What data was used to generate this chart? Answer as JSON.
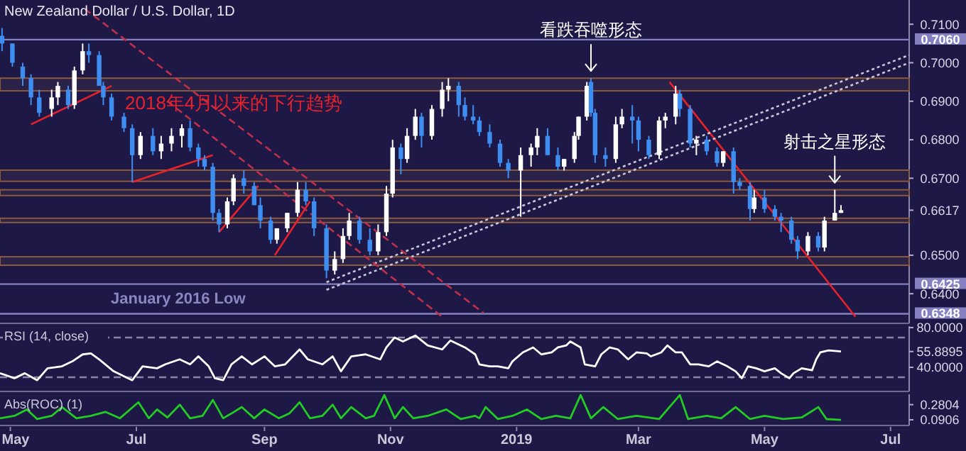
{
  "chart_data": [
    {
      "type": "candlestick",
      "title": "New Zealand Dollar / U.S. Dollar, 1D",
      "tick_labels": "y",
      "xlim": [
        "2018-04-26",
        "2019-07-10"
      ],
      "ylim": [
        0.6323,
        0.7163
      ],
      "yticks": [
        {
          "value": 0.71,
          "label": "0.7100"
        },
        {
          "value": 0.7,
          "label": "0.7000"
        },
        {
          "value": 0.69,
          "label": "0.6900"
        },
        {
          "value": 0.68,
          "label": "0.6800"
        },
        {
          "value": 0.67,
          "label": "0.6700"
        },
        {
          "value": 0.6617,
          "label": "0.6617"
        },
        {
          "value": 0.65,
          "label": "0.6500"
        },
        {
          "value": 0.64,
          "label": "0.6400"
        }
      ],
      "colors": [
        "#3d8ef0",
        "#3d8ef0",
        "#3d8ef0",
        "#3d8ef0",
        "#3d8ef0",
        "#ffffff",
        "#ffffff",
        "#3d8ef0",
        "#ffffff",
        "#ffffff",
        "#3d8ef0",
        "#3d8ef0",
        "#3d8ef0",
        "#3d8ef0",
        "#3d8ef0",
        "#3d8ef0",
        "#ffffff",
        "#3d8ef0",
        "#ffffff",
        "#ffffff",
        "#ffffff",
        "#3d8ef0",
        "#3d8ef0",
        "#3d8ef0",
        "#3d8ef0",
        "#3d8ef0",
        "#ffffff",
        "#ffffff",
        "#3d8ef0",
        "#3d8ef0",
        "#3d8ef0",
        "#3d8ef0",
        "#ffffff",
        "#ffffff",
        "#ffffff",
        "#3d8ef0",
        "#3d8ef0",
        "#3d8ef0",
        "#ffffff",
        "#ffffff",
        "#ffffff",
        "#3d8ef0",
        "#3d8ef0",
        "#ffffff",
        "#ffffff",
        "#ffffff",
        "#3d8ef0",
        "#ffffff",
        "#ffffff",
        "#3d8ef0",
        "#ffffff",
        "#ffffff",
        "#ffffff",
        "#3d8ef0",
        "#3d8ef0",
        "#3d8ef0",
        "#3d8ef0",
        "#3d8ef0",
        "#3d8ef0",
        "#3d8ef0",
        "#ffffff",
        "#ffffff",
        "#ffffff",
        "#3d8ef0",
        "#3d8ef0",
        "#ffffff",
        "#ffffff",
        "#ffffff",
        "#ffffff",
        "#3d8ef0",
        "#3d8ef0",
        "#3d8ef0",
        "#ffffff",
        "#ffffff",
        "#3d8ef0",
        "#3d8ef0",
        "#3d8ef0",
        "#ffffff",
        "#ffffff",
        "#ffffff",
        "#3d8ef0",
        "#3d8ef0",
        "#ffffff",
        "#3d8ef0",
        "#3d8ef0",
        "#ffffff",
        "#3d8ef0",
        "#3d8ef0",
        "#3d8ef0",
        "#ffffff",
        "#3d8ef0",
        "#3d8ef0",
        "#3d8ef0",
        "#3d8ef0",
        "#3d8ef0",
        "#ffffff",
        "#3d8ef0",
        "#ffffff",
        "#ffffff",
        "#ffffff"
      ],
      "x": [
        "2018-04-27",
        "2018-05-02",
        "2018-05-07",
        "2018-05-11",
        "2018-05-15",
        "2018-05-21",
        "2018-05-24",
        "2018-05-29",
        "2018-06-01",
        "2018-06-05",
        "2018-06-08",
        "2018-06-13",
        "2018-06-15",
        "2018-06-19",
        "2018-06-25",
        "2018-06-29",
        "2018-07-03",
        "2018-07-09",
        "2018-07-13",
        "2018-07-18",
        "2018-07-23",
        "2018-07-27",
        "2018-07-31",
        "2018-08-03",
        "2018-08-07",
        "2018-08-10",
        "2018-08-14",
        "2018-08-17",
        "2018-08-22",
        "2018-08-27",
        "2018-08-30",
        "2018-09-04",
        "2018-09-07",
        "2018-09-12",
        "2018-09-17",
        "2018-09-21",
        "2018-09-25",
        "2018-10-01",
        "2018-10-05",
        "2018-10-09",
        "2018-10-12",
        "2018-10-17",
        "2018-10-22",
        "2018-10-26",
        "2018-10-30",
        "2018-11-02",
        "2018-11-06",
        "2018-11-09",
        "2018-11-13",
        "2018-11-16",
        "2018-11-21",
        "2018-11-26",
        "2018-11-29",
        "2018-12-04",
        "2018-12-07",
        "2018-12-11",
        "2018-12-14",
        "2018-12-19",
        "2018-12-24",
        "2018-12-28",
        "2019-01-03",
        "2019-01-08",
        "2019-01-11",
        "2019-01-16",
        "2019-01-21",
        "2019-01-24",
        "2019-01-29",
        "2019-01-31",
        "2019-02-04",
        "2019-02-06",
        "2019-02-08",
        "2019-02-13",
        "2019-02-18",
        "2019-02-21",
        "2019-02-26",
        "2019-03-01",
        "2019-03-06",
        "2019-03-11",
        "2019-03-14",
        "2019-03-19",
        "2019-03-21",
        "2019-03-26",
        "2019-03-29",
        "2019-04-03",
        "2019-04-08",
        "2019-04-11",
        "2019-04-16",
        "2019-04-19",
        "2019-04-24",
        "2019-04-26",
        "2019-05-01",
        "2019-05-06",
        "2019-05-09",
        "2019-05-14",
        "2019-05-17",
        "2019-05-22",
        "2019-05-27",
        "2019-05-30",
        "2019-06-04",
        "2019-06-07"
      ],
      "ohlc": [
        [
          0.707,
          0.709,
          0.703,
          0.705
        ],
        [
          0.705,
          0.705,
          0.699,
          0.7
        ],
        [
          0.699,
          0.7,
          0.694,
          0.696
        ],
        [
          0.696,
          0.697,
          0.689,
          0.691
        ],
        [
          0.691,
          0.693,
          0.686,
          0.687
        ],
        [
          0.688,
          0.693,
          0.686,
          0.691
        ],
        [
          0.691,
          0.695,
          0.689,
          0.694
        ],
        [
          0.693,
          0.694,
          0.688,
          0.689
        ],
        [
          0.689,
          0.699,
          0.688,
          0.698
        ],
        [
          0.698,
          0.705,
          0.697,
          0.703
        ],
        [
          0.703,
          0.705,
          0.7,
          0.702
        ],
        [
          0.702,
          0.703,
          0.694,
          0.694
        ],
        [
          0.694,
          0.695,
          0.689,
          0.691
        ],
        [
          0.691,
          0.692,
          0.685,
          0.686
        ],
        [
          0.686,
          0.687,
          0.682,
          0.683
        ],
        [
          0.683,
          0.684,
          0.669,
          0.676
        ],
        [
          0.676,
          0.682,
          0.675,
          0.681
        ],
        [
          0.681,
          0.683,
          0.676,
          0.677
        ],
        [
          0.677,
          0.681,
          0.675,
          0.679
        ],
        [
          0.679,
          0.683,
          0.677,
          0.681
        ],
        [
          0.681,
          0.684,
          0.678,
          0.683
        ],
        [
          0.683,
          0.685,
          0.677,
          0.678
        ],
        [
          0.678,
          0.679,
          0.673,
          0.675
        ],
        [
          0.675,
          0.676,
          0.672,
          0.673
        ],
        [
          0.673,
          0.674,
          0.659,
          0.661
        ],
        [
          0.661,
          0.662,
          0.656,
          0.658
        ],
        [
          0.658,
          0.665,
          0.657,
          0.664
        ],
        [
          0.664,
          0.671,
          0.663,
          0.67
        ],
        [
          0.67,
          0.672,
          0.666,
          0.668
        ],
        [
          0.668,
          0.669,
          0.663,
          0.663
        ],
        [
          0.663,
          0.665,
          0.657,
          0.659
        ],
        [
          0.659,
          0.66,
          0.653,
          0.654
        ],
        [
          0.654,
          0.657,
          0.653,
          0.657
        ],
        [
          0.657,
          0.661,
          0.656,
          0.661
        ],
        [
          0.661,
          0.669,
          0.66,
          0.667
        ],
        [
          0.667,
          0.669,
          0.663,
          0.664
        ],
        [
          0.664,
          0.665,
          0.655,
          0.657
        ],
        [
          0.657,
          0.658,
          0.644,
          0.646
        ],
        [
          0.646,
          0.651,
          0.645,
          0.649
        ],
        [
          0.649,
          0.657,
          0.648,
          0.655
        ],
        [
          0.655,
          0.661,
          0.654,
          0.659
        ],
        [
          0.659,
          0.66,
          0.653,
          0.654
        ],
        [
          0.654,
          0.657,
          0.65,
          0.651
        ],
        [
          0.651,
          0.658,
          0.65,
          0.656
        ],
        [
          0.656,
          0.668,
          0.655,
          0.666
        ],
        [
          0.666,
          0.68,
          0.665,
          0.678
        ],
        [
          0.678,
          0.679,
          0.671,
          0.675
        ],
        [
          0.675,
          0.683,
          0.674,
          0.681
        ],
        [
          0.681,
          0.688,
          0.68,
          0.686
        ],
        [
          0.686,
          0.687,
          0.678,
          0.681
        ],
        [
          0.681,
          0.689,
          0.68,
          0.688
        ],
        [
          0.688,
          0.695,
          0.686,
          0.693
        ],
        [
          0.693,
          0.696,
          0.69,
          0.694
        ],
        [
          0.694,
          0.695,
          0.686,
          0.689
        ],
        [
          0.689,
          0.691,
          0.685,
          0.686
        ],
        [
          0.686,
          0.689,
          0.684,
          0.685
        ],
        [
          0.685,
          0.686,
          0.681,
          0.682
        ],
        [
          0.682,
          0.684,
          0.678,
          0.679
        ],
        [
          0.679,
          0.68,
          0.673,
          0.674
        ],
        [
          0.674,
          0.675,
          0.67,
          0.672
        ],
        [
          0.672,
          0.678,
          0.66,
          0.676
        ],
        [
          0.676,
          0.679,
          0.673,
          0.678
        ],
        [
          0.678,
          0.683,
          0.676,
          0.681
        ],
        [
          0.681,
          0.683,
          0.676,
          0.676
        ],
        [
          0.676,
          0.678,
          0.672,
          0.673
        ],
        [
          0.673,
          0.675,
          0.672,
          0.675
        ],
        [
          0.675,
          0.682,
          0.674,
          0.681
        ],
        [
          0.681,
          0.686,
          0.68,
          0.686
        ],
        [
          0.686,
          0.695,
          0.685,
          0.694
        ],
        [
          0.695,
          0.696,
          0.686,
          0.687
        ],
        [
          0.687,
          0.688,
          0.674,
          0.676
        ],
        [
          0.676,
          0.678,
          0.673,
          0.675
        ],
        [
          0.675,
          0.686,
          0.674,
          0.684
        ],
        [
          0.684,
          0.688,
          0.683,
          0.686
        ],
        [
          0.686,
          0.689,
          0.679,
          0.685
        ],
        [
          0.685,
          0.686,
          0.677,
          0.68
        ],
        [
          0.68,
          0.681,
          0.675,
          0.676
        ],
        [
          0.676,
          0.686,
          0.675,
          0.685
        ],
        [
          0.685,
          0.687,
          0.683,
          0.686
        ],
        [
          0.686,
          0.694,
          0.684,
          0.692
        ],
        [
          0.692,
          0.693,
          0.686,
          0.688
        ],
        [
          0.688,
          0.689,
          0.678,
          0.679
        ],
        [
          0.679,
          0.681,
          0.676,
          0.68
        ],
        [
          0.68,
          0.681,
          0.676,
          0.677
        ],
        [
          0.677,
          0.678,
          0.673,
          0.674
        ],
        [
          0.674,
          0.677,
          0.673,
          0.677
        ],
        [
          0.677,
          0.678,
          0.666,
          0.669
        ],
        [
          0.669,
          0.67,
          0.667,
          0.668
        ],
        [
          0.668,
          0.669,
          0.659,
          0.662
        ],
        [
          0.662,
          0.667,
          0.661,
          0.665
        ],
        [
          0.665,
          0.667,
          0.661,
          0.662
        ],
        [
          0.662,
          0.663,
          0.659,
          0.66
        ],
        [
          0.66,
          0.661,
          0.656,
          0.659
        ],
        [
          0.659,
          0.66,
          0.653,
          0.654
        ],
        [
          0.654,
          0.655,
          0.649,
          0.651
        ],
        [
          0.651,
          0.656,
          0.65,
          0.655
        ],
        [
          0.655,
          0.656,
          0.651,
          0.652
        ],
        [
          0.652,
          0.66,
          0.651,
          0.659
        ],
        [
          0.659,
          0.667,
          0.659,
          0.661
        ],
        [
          0.661,
          0.663,
          0.661,
          0.6617
        ]
      ],
      "series": [
        {
          "type": "line",
          "color": "#e8222a",
          "line_style": "solid",
          "x": [
            "2018-05-11",
            "2018-06-19"
          ],
          "values": [
            0.684,
            0.694
          ]
        },
        {
          "type": "line",
          "color": "#e8222a",
          "line_style": "solid",
          "x": [
            "2018-06-29",
            "2018-08-07"
          ],
          "values": [
            0.669,
            0.676
          ]
        },
        {
          "type": "line",
          "color": "#e8222a",
          "line_style": "solid",
          "x": [
            "2018-08-10",
            "2018-08-29"
          ],
          "values": [
            0.656,
            0.668
          ]
        },
        {
          "type": "line",
          "color": "#e8222a",
          "line_style": "solid",
          "x": [
            "2018-09-06",
            "2018-09-23"
          ],
          "values": [
            0.65,
            0.664
          ]
        },
        {
          "type": "line",
          "color": "#e8222a",
          "line_style": "solid",
          "x": [
            "2019-03-16",
            "2019-06-14"
          ],
          "values": [
            0.695,
            0.634
          ]
        },
        {
          "type": "line",
          "color": "#c8c8d8",
          "line_style": "dotted",
          "x": [
            "2018-10-01",
            "2019-07-10"
          ],
          "values": [
            0.641,
            0.7
          ]
        },
        {
          "type": "line",
          "color": "#c8c8d8",
          "line_style": "dotted",
          "x": [
            "2018-10-01",
            "2019-07-10"
          ],
          "values": [
            0.643,
            0.702
          ]
        },
        {
          "type": "line",
          "color": "#c0304a",
          "line_style": "dashed",
          "x": [
            "2018-06-06",
            "2018-12-16"
          ],
          "values": [
            0.714,
            0.635
          ]
        },
        {
          "type": "line",
          "color": "#c0304a",
          "line_style": "dashed",
          "x": [
            "2018-07-16",
            "2018-11-26"
          ],
          "values": [
            0.69,
            0.634
          ]
        }
      ],
      "bands": [
        {
          "axis": "y",
          "from": 0.6927,
          "to": 0.696,
          "color": "#8b5a3c"
        },
        {
          "axis": "y",
          "from": 0.6692,
          "to": 0.6721,
          "color": "#8b5a3c"
        },
        {
          "axis": "y",
          "from": 0.6655,
          "to": 0.667,
          "color": "#8b5a3c"
        },
        {
          "axis": "y",
          "from": 0.6585,
          "to": 0.6596,
          "color": "#8b5a3c"
        },
        {
          "axis": "y",
          "from": 0.6474,
          "to": 0.6496,
          "color": "#8b5a3c"
        }
      ],
      "ref_lines": [
        {
          "axis": "y",
          "value": 0.706,
          "label": "0.7060",
          "color": "#8580c0"
        },
        {
          "axis": "y",
          "value": 0.6425,
          "label": "0.6425",
          "color": "#8580c0"
        },
        {
          "axis": "y",
          "value": 0.6348,
          "label": "0.6348",
          "color": "#8580c0"
        }
      ],
      "annotations": [
        "2018年4月以来的下行趋势",
        {
          "text": "看跌吞噬形态",
          "x": "2019-02-06",
          "y": 0.696
        },
        {
          "text": "射击之星形态",
          "x": "2019-06-04",
          "y": 0.667
        },
        "January 2016 Low"
      ]
    },
    {
      "type": "line",
      "title": "RSI (14, close)",
      "tick_labels": "y",
      "xlim": [
        "2018-04-26",
        "2019-07-10"
      ],
      "ylim": [
        15.7,
        81.4
      ],
      "yticks": [
        {
          "value": 80,
          "label": "80.0000"
        },
        {
          "value": 55.8895,
          "label": "55.8895"
        },
        {
          "value": 40,
          "label": "40.0000"
        }
      ],
      "ref_lines": [
        {
          "axis": "y",
          "value": 70,
          "color": "#8a86a8",
          "line_style": "dashed"
        },
        {
          "axis": "y",
          "value": 30,
          "color": "#8a86a8",
          "line_style": "dashed"
        }
      ],
      "x": [
        "2018-04-26",
        "2018-05-03",
        "2018-05-08",
        "2018-05-14",
        "2018-05-19",
        "2018-05-26",
        "2018-05-31",
        "2018-06-05",
        "2018-06-09",
        "2018-06-13",
        "2018-06-20",
        "2018-06-29",
        "2018-07-04",
        "2018-07-11",
        "2018-07-15",
        "2018-07-22",
        "2018-07-27",
        "2018-07-31",
        "2018-08-05",
        "2018-08-08",
        "2018-08-12",
        "2018-08-16",
        "2018-08-21",
        "2018-08-26",
        "2018-09-01",
        "2018-09-06",
        "2018-09-11",
        "2018-09-18",
        "2018-09-22",
        "2018-09-29",
        "2018-10-04",
        "2018-10-08",
        "2018-10-13",
        "2018-10-20",
        "2018-10-27",
        "2018-10-30",
        "2018-11-03",
        "2018-11-07",
        "2018-11-13",
        "2018-11-19",
        "2018-11-26",
        "2018-11-30",
        "2018-12-07",
        "2018-12-12",
        "2018-12-14",
        "2018-12-19",
        "2018-12-23",
        "2018-12-28",
        "2018-12-30",
        "2019-01-04",
        "2019-01-09",
        "2019-01-13",
        "2019-01-18",
        "2019-01-21",
        "2019-01-25",
        "2019-01-27",
        "2019-02-01",
        "2019-02-03",
        "2019-02-08",
        "2019-02-11",
        "2019-02-15",
        "2019-02-19",
        "2019-02-24",
        "2019-02-28",
        "2019-03-05",
        "2019-03-07",
        "2019-03-12",
        "2019-03-15",
        "2019-03-19",
        "2019-03-22",
        "2019-03-26",
        "2019-03-30",
        "2019-04-04",
        "2019-04-08",
        "2019-04-13",
        "2019-04-17",
        "2019-04-20",
        "2019-04-23",
        "2019-04-27",
        "2019-05-01",
        "2019-05-06",
        "2019-05-09",
        "2019-05-13",
        "2019-05-15",
        "2019-05-19",
        "2019-05-24",
        "2019-05-26",
        "2019-05-28",
        "2019-06-01",
        "2019-06-07"
      ],
      "series": [
        {
          "color": "#ffffff",
          "values": [
            34,
            29,
            34,
            27,
            39,
            41,
            46,
            53,
            54,
            48,
            36,
            27,
            41,
            39,
            43,
            48,
            43,
            51,
            41,
            29,
            27,
            43,
            51,
            43,
            51,
            41,
            43,
            58,
            48,
            43,
            51,
            36,
            51,
            53,
            48,
            60,
            70,
            66,
            72,
            62,
            58,
            67,
            60,
            53,
            43,
            41,
            41,
            39,
            46,
            55,
            60,
            53,
            55,
            60,
            62,
            66,
            60,
            43,
            41,
            53,
            60,
            58,
            48,
            55,
            54,
            51,
            55,
            62,
            55,
            55,
            43,
            43,
            41,
            46,
            41,
            36,
            29,
            41,
            39,
            36,
            39,
            34,
            29,
            34,
            39,
            37,
            48,
            55,
            57,
            55.8895
          ]
        }
      ]
    },
    {
      "type": "line",
      "title": "Abs(ROC) (1)",
      "xlim": [
        "2018-04-26",
        "2019-07-10"
      ],
      "ylim": [
        0.02,
        0.41
      ],
      "xticks": [
        {
          "value": "2018-05-01",
          "label": "May"
        },
        {
          "value": "2018-07-01",
          "label": "Jul"
        },
        {
          "value": "2018-09-01",
          "label": "Sep"
        },
        {
          "value": "2018-11-01",
          "label": "Nov"
        },
        {
          "value": "2019-01-01",
          "label": "2019"
        },
        {
          "value": "2019-03-01",
          "label": "Mar"
        },
        {
          "value": "2019-05-01",
          "label": "May"
        },
        {
          "value": "2019-07-01",
          "label": "Jul"
        }
      ],
      "yticks": [
        {
          "value": 0.2804,
          "label": "0.2804"
        },
        {
          "value": 0.0906,
          "label": "0.0906"
        }
      ],
      "x": [
        "2018-04-26",
        "2018-05-03",
        "2018-05-09",
        "2018-05-14",
        "2018-05-21",
        "2018-05-26",
        "2018-06-02",
        "2018-06-09",
        "2018-06-16",
        "2018-06-23",
        "2018-07-02",
        "2018-07-07",
        "2018-07-11",
        "2018-07-16",
        "2018-07-22",
        "2018-07-27",
        "2018-08-02",
        "2018-08-07",
        "2018-08-12",
        "2018-08-16",
        "2018-08-21",
        "2018-08-27",
        "2018-09-01",
        "2018-09-08",
        "2018-09-13",
        "2018-09-18",
        "2018-09-23",
        "2018-09-29",
        "2018-10-04",
        "2018-10-08",
        "2018-10-13",
        "2018-10-20",
        "2018-10-24",
        "2018-10-29",
        "2018-11-03",
        "2018-11-07",
        "2018-11-12",
        "2018-11-19",
        "2018-11-28",
        "2018-12-05",
        "2018-12-12",
        "2018-12-14",
        "2018-12-17",
        "2018-12-23",
        "2018-12-30",
        "2019-01-06",
        "2019-01-13",
        "2019-01-20",
        "2019-01-27",
        "2019-02-01",
        "2019-02-06",
        "2019-02-12",
        "2019-02-19",
        "2019-02-28",
        "2019-03-11",
        "2019-03-21",
        "2019-03-25",
        "2019-04-03",
        "2019-04-10",
        "2019-04-17",
        "2019-04-24",
        "2019-05-01",
        "2019-05-10",
        "2019-05-19",
        "2019-05-27",
        "2019-05-31",
        "2019-06-07"
      ],
      "series": [
        {
          "color": "#22cc22",
          "values": [
            0.11,
            0.14,
            0.22,
            0.1,
            0.14,
            0.25,
            0.11,
            0.14,
            0.19,
            0.11,
            0.31,
            0.11,
            0.22,
            0.12,
            0.28,
            0.11,
            0.14,
            0.34,
            0.11,
            0.17,
            0.25,
            0.11,
            0.22,
            0.11,
            0.17,
            0.31,
            0.11,
            0.14,
            0.28,
            0.11,
            0.25,
            0.11,
            0.14,
            0.4,
            0.11,
            0.25,
            0.11,
            0.14,
            0.22,
            0.1,
            0.14,
            0.11,
            0.25,
            0.1,
            0.14,
            0.22,
            0.1,
            0.14,
            0.11,
            0.4,
            0.11,
            0.25,
            0.1,
            0.14,
            0.1,
            0.4,
            0.1,
            0.14,
            0.11,
            0.25,
            0.1,
            0.14,
            0.1,
            0.12,
            0.25,
            0.1,
            0.0906
          ]
        }
      ]
    }
  ]
}
